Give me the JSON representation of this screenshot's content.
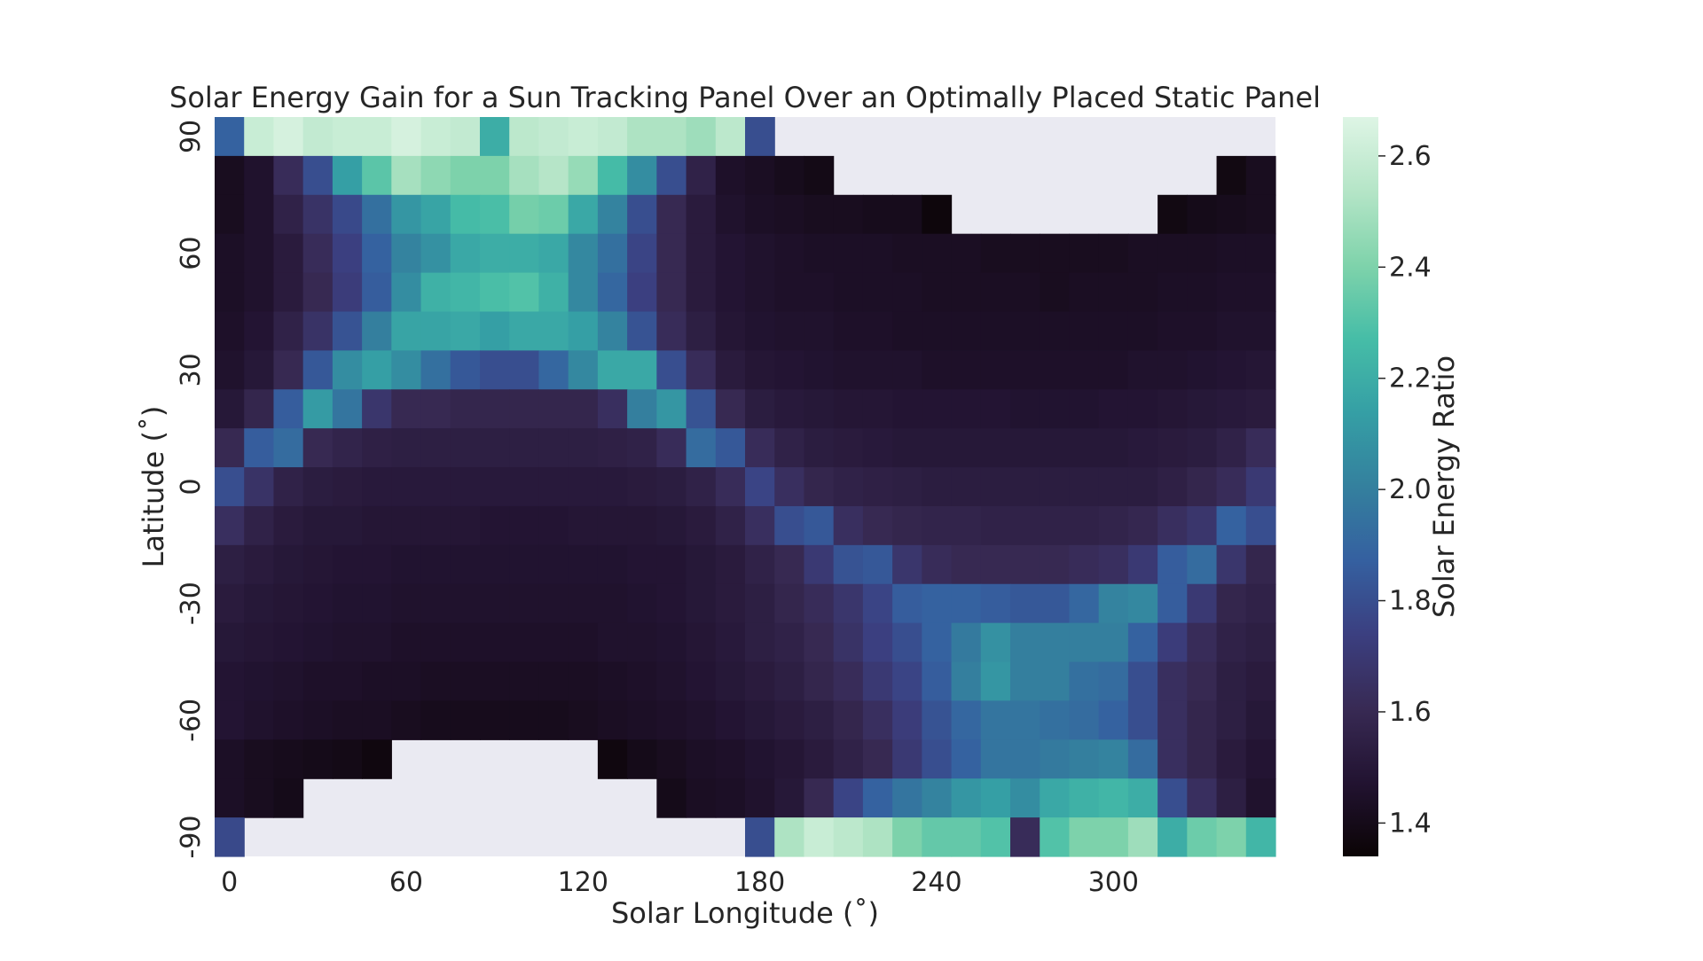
{
  "chart_data": {
    "type": "heatmap",
    "title": "Solar Energy Gain for a Sun Tracking Panel Over an Optimally Placed Static Panel",
    "xlabel": "Solar Longitude (˚)",
    "ylabel": "Latitude (˚)",
    "colorbar_label": "Solar Energy Ratio",
    "x_values": [
      0,
      10,
      20,
      30,
      40,
      50,
      60,
      70,
      80,
      90,
      100,
      110,
      120,
      130,
      140,
      150,
      160,
      170,
      180,
      190,
      200,
      210,
      220,
      230,
      240,
      250,
      260,
      270,
      280,
      290,
      300,
      310,
      320,
      330,
      340,
      350
    ],
    "y_values": [
      90,
      80,
      70,
      60,
      50,
      40,
      30,
      20,
      10,
      0,
      -10,
      -20,
      -30,
      -40,
      -50,
      -60,
      -70,
      -80,
      -90
    ],
    "x_tick_labels": [
      "0",
      "60",
      "120",
      "180",
      "240",
      "300"
    ],
    "x_tick_values": [
      0,
      60,
      120,
      180,
      240,
      300
    ],
    "y_tick_labels": [
      "90",
      "60",
      "30",
      "0",
      "-30",
      "-60",
      "-90"
    ],
    "y_tick_values": [
      90,
      60,
      30,
      0,
      -30,
      -60,
      -90
    ],
    "colorbar_ticks": [
      1.4,
      1.6,
      1.8,
      2.0,
      2.2,
      2.4,
      2.6
    ],
    "colorbar_tick_labels": [
      "1.4",
      "1.6",
      "1.8",
      "2.0",
      "2.2",
      "2.4",
      "2.6"
    ],
    "vmin": 1.34,
    "vmax": 2.67,
    "colormap": "mako",
    "missing_color": "#eaeaf2",
    "values": [
      [
        1.88,
        2.6,
        2.64,
        2.58,
        2.6,
        2.6,
        2.64,
        2.6,
        2.58,
        2.2,
        2.56,
        2.58,
        2.6,
        2.58,
        2.52,
        2.52,
        2.48,
        2.56,
        1.8,
        null,
        null,
        null,
        null,
        null,
        null,
        null,
        null,
        null,
        null,
        null,
        null,
        null,
        null,
        null,
        null,
        null
      ],
      [
        1.42,
        1.46,
        1.62,
        1.8,
        2.14,
        2.32,
        2.5,
        2.44,
        2.4,
        2.4,
        2.5,
        2.54,
        2.46,
        2.26,
        2.06,
        1.8,
        1.56,
        1.45,
        1.43,
        1.41,
        1.39,
        null,
        null,
        null,
        null,
        null,
        null,
        null,
        null,
        null,
        null,
        null,
        null,
        null,
        1.38,
        1.42
      ],
      [
        1.42,
        1.46,
        1.56,
        1.66,
        1.78,
        1.94,
        2.1,
        2.16,
        2.26,
        2.28,
        2.38,
        2.36,
        2.18,
        2.02,
        1.8,
        1.6,
        1.52,
        1.46,
        1.44,
        1.43,
        1.42,
        1.42,
        1.41,
        1.41,
        1.36,
        null,
        null,
        null,
        null,
        null,
        null,
        null,
        1.38,
        1.4,
        1.41,
        1.42
      ],
      [
        1.44,
        1.46,
        1.52,
        1.62,
        1.74,
        1.88,
        2.02,
        2.08,
        2.18,
        2.2,
        2.2,
        2.18,
        2.04,
        1.94,
        1.76,
        1.6,
        1.52,
        1.48,
        1.46,
        1.45,
        1.44,
        1.44,
        1.44,
        1.43,
        1.43,
        1.43,
        1.42,
        1.42,
        1.42,
        1.42,
        1.42,
        1.43,
        1.43,
        1.43,
        1.44,
        1.44
      ],
      [
        1.44,
        1.46,
        1.52,
        1.6,
        1.72,
        1.86,
        2.06,
        2.22,
        2.24,
        2.28,
        2.3,
        2.22,
        2.04,
        1.9,
        1.74,
        1.6,
        1.52,
        1.48,
        1.46,
        1.45,
        1.45,
        1.44,
        1.44,
        1.44,
        1.43,
        1.43,
        1.43,
        1.43,
        1.42,
        1.43,
        1.43,
        1.43,
        1.44,
        1.44,
        1.45,
        1.45
      ],
      [
        1.45,
        1.48,
        1.56,
        1.66,
        1.82,
        2.0,
        2.16,
        2.16,
        2.18,
        2.14,
        2.18,
        2.18,
        2.14,
        2.02,
        1.82,
        1.62,
        1.54,
        1.49,
        1.47,
        1.46,
        1.46,
        1.45,
        1.45,
        1.44,
        1.44,
        1.44,
        1.44,
        1.44,
        1.44,
        1.44,
        1.44,
        1.44,
        1.45,
        1.45,
        1.46,
        1.46
      ],
      [
        1.46,
        1.5,
        1.6,
        1.84,
        2.06,
        2.14,
        2.06,
        1.94,
        1.84,
        1.8,
        1.8,
        1.9,
        2.04,
        2.18,
        2.18,
        1.8,
        1.62,
        1.52,
        1.49,
        1.48,
        1.47,
        1.46,
        1.46,
        1.46,
        1.45,
        1.45,
        1.45,
        1.45,
        1.45,
        1.45,
        1.45,
        1.46,
        1.46,
        1.47,
        1.48,
        1.49
      ],
      [
        1.5,
        1.58,
        1.86,
        2.12,
        1.96,
        1.68,
        1.6,
        1.6,
        1.58,
        1.58,
        1.58,
        1.58,
        1.58,
        1.64,
        2.0,
        2.1,
        1.82,
        1.6,
        1.53,
        1.51,
        1.5,
        1.49,
        1.49,
        1.48,
        1.48,
        1.48,
        1.48,
        1.47,
        1.47,
        1.47,
        1.48,
        1.48,
        1.49,
        1.5,
        1.51,
        1.52
      ],
      [
        1.6,
        1.86,
        1.92,
        1.6,
        1.57,
        1.55,
        1.54,
        1.54,
        1.54,
        1.54,
        1.54,
        1.54,
        1.54,
        1.55,
        1.56,
        1.62,
        1.92,
        1.84,
        1.62,
        1.56,
        1.53,
        1.52,
        1.51,
        1.5,
        1.5,
        1.5,
        1.5,
        1.5,
        1.5,
        1.5,
        1.5,
        1.51,
        1.52,
        1.53,
        1.56,
        1.62
      ],
      [
        1.8,
        1.66,
        1.56,
        1.53,
        1.52,
        1.51,
        1.51,
        1.51,
        1.51,
        1.51,
        1.51,
        1.51,
        1.51,
        1.51,
        1.52,
        1.53,
        1.56,
        1.62,
        1.76,
        1.64,
        1.58,
        1.56,
        1.55,
        1.54,
        1.53,
        1.53,
        1.53,
        1.53,
        1.53,
        1.53,
        1.53,
        1.53,
        1.55,
        1.58,
        1.62,
        1.7
      ],
      [
        1.64,
        1.56,
        1.52,
        1.5,
        1.5,
        1.49,
        1.49,
        1.49,
        1.49,
        1.48,
        1.48,
        1.48,
        1.49,
        1.49,
        1.49,
        1.5,
        1.52,
        1.56,
        1.64,
        1.8,
        1.84,
        1.64,
        1.6,
        1.58,
        1.57,
        1.57,
        1.56,
        1.56,
        1.56,
        1.56,
        1.57,
        1.59,
        1.64,
        1.68,
        1.88,
        1.8
      ],
      [
        1.54,
        1.52,
        1.5,
        1.49,
        1.48,
        1.48,
        1.47,
        1.47,
        1.47,
        1.47,
        1.47,
        1.47,
        1.47,
        1.47,
        1.48,
        1.48,
        1.5,
        1.52,
        1.56,
        1.6,
        1.7,
        1.82,
        1.84,
        1.68,
        1.62,
        1.6,
        1.6,
        1.6,
        1.6,
        1.62,
        1.64,
        1.7,
        1.86,
        1.92,
        1.68,
        1.58
      ],
      [
        1.52,
        1.5,
        1.49,
        1.48,
        1.47,
        1.47,
        1.46,
        1.46,
        1.46,
        1.46,
        1.46,
        1.46,
        1.46,
        1.46,
        1.47,
        1.48,
        1.5,
        1.52,
        1.54,
        1.58,
        1.62,
        1.68,
        1.76,
        1.86,
        1.88,
        1.88,
        1.86,
        1.84,
        1.84,
        1.9,
        2.02,
        2.04,
        1.86,
        1.7,
        1.58,
        1.56
      ],
      [
        1.5,
        1.49,
        1.48,
        1.47,
        1.46,
        1.46,
        1.45,
        1.45,
        1.45,
        1.45,
        1.45,
        1.45,
        1.45,
        1.46,
        1.46,
        1.47,
        1.49,
        1.51,
        1.54,
        1.56,
        1.6,
        1.66,
        1.74,
        1.8,
        1.88,
        1.98,
        2.08,
        2.0,
        2.0,
        2.0,
        2.0,
        1.88,
        1.72,
        1.62,
        1.56,
        1.54
      ],
      [
        1.48,
        1.47,
        1.46,
        1.45,
        1.45,
        1.44,
        1.44,
        1.43,
        1.43,
        1.43,
        1.43,
        1.43,
        1.43,
        1.44,
        1.45,
        1.46,
        1.48,
        1.5,
        1.52,
        1.54,
        1.58,
        1.62,
        1.7,
        1.76,
        1.86,
        2.0,
        2.1,
        2.0,
        2.0,
        1.94,
        1.92,
        1.8,
        1.64,
        1.6,
        1.54,
        1.52
      ],
      [
        1.48,
        1.46,
        1.45,
        1.44,
        1.43,
        1.43,
        1.42,
        1.41,
        1.41,
        1.41,
        1.41,
        1.41,
        1.42,
        1.43,
        1.44,
        1.45,
        1.46,
        1.48,
        1.5,
        1.52,
        1.54,
        1.58,
        1.64,
        1.72,
        1.82,
        1.9,
        1.96,
        1.96,
        1.94,
        1.92,
        1.88,
        1.8,
        1.64,
        1.58,
        1.54,
        1.5
      ],
      [
        1.44,
        1.42,
        1.41,
        1.4,
        1.39,
        1.37,
        null,
        null,
        null,
        null,
        null,
        null,
        null,
        1.37,
        1.4,
        1.42,
        1.44,
        1.45,
        1.47,
        1.49,
        1.52,
        1.56,
        1.6,
        1.7,
        1.8,
        1.88,
        1.96,
        1.96,
        1.98,
        2.0,
        2.02,
        1.92,
        1.64,
        1.58,
        1.52,
        1.48
      ],
      [
        1.44,
        1.42,
        1.4,
        null,
        null,
        null,
        null,
        null,
        null,
        null,
        null,
        null,
        null,
        null,
        null,
        1.4,
        1.43,
        1.44,
        1.46,
        1.5,
        1.6,
        1.76,
        1.88,
        1.96,
        2.02,
        2.1,
        2.14,
        2.06,
        2.18,
        2.22,
        2.24,
        2.2,
        1.8,
        1.64,
        1.54,
        1.46
      ],
      [
        1.78,
        null,
        null,
        null,
        null,
        null,
        null,
        null,
        null,
        null,
        null,
        null,
        null,
        null,
        null,
        null,
        null,
        null,
        1.8,
        2.52,
        2.6,
        2.56,
        2.52,
        2.4,
        2.34,
        2.34,
        2.3,
        1.62,
        2.3,
        2.4,
        2.4,
        2.48,
        2.2,
        2.36,
        2.4,
        2.24
      ]
    ]
  }
}
